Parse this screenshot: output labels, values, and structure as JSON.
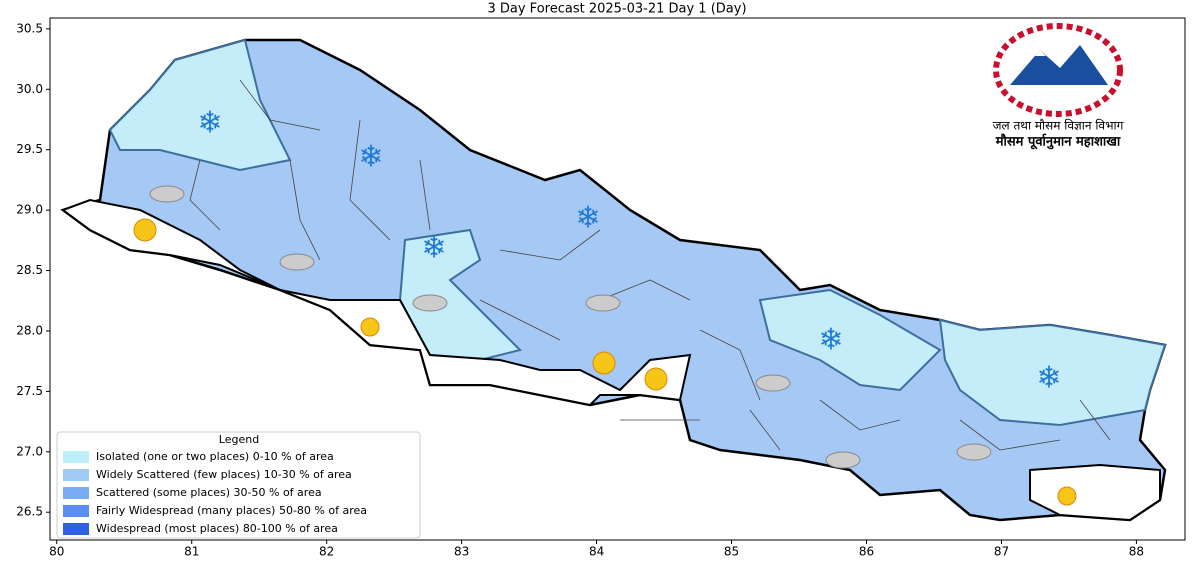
{
  "title": "3 Day Forecast 2025-03-21 Day 1 (Day)",
  "xlim": [
    79.95,
    88.36
  ],
  "ylim": [
    26.27,
    30.59
  ],
  "xticks": [
    80,
    81,
    82,
    83,
    84,
    85,
    86,
    87,
    88
  ],
  "yticks": [
    26.5,
    {
      "value": 27,
      "label": "27.0"
    },
    27.5,
    {
      "value": 28,
      "label": "28.0"
    },
    28.5,
    {
      "value": 29,
      "label": "29.0"
    },
    29.5,
    {
      "value": 30,
      "label": "30.0"
    },
    30.5
  ],
  "header": {
    "line1": "जल तथा मौसम विज्ञान विभाग",
    "line2": "मौसम पूर्वानुमान महाशाखा"
  },
  "legend": {
    "title": "Legend",
    "entries": [
      {
        "label": "Isolated (one or two places)  0-10 % of area",
        "color": "#bdeefa"
      },
      {
        "label": "Widely Scattered (few places) 10-30 % of area",
        "color": "#9fcbf5"
      },
      {
        "label": "Scattered (some places) 30-50  % of area",
        "color": "#7aacf5"
      },
      {
        "label": "Fairly Widespread (many places) 50-80 % of area",
        "color": "#5b8ef5"
      },
      {
        "label": "Widespread (most places) 80-100 % of area",
        "color": "#2e5fe6"
      }
    ]
  }
}
